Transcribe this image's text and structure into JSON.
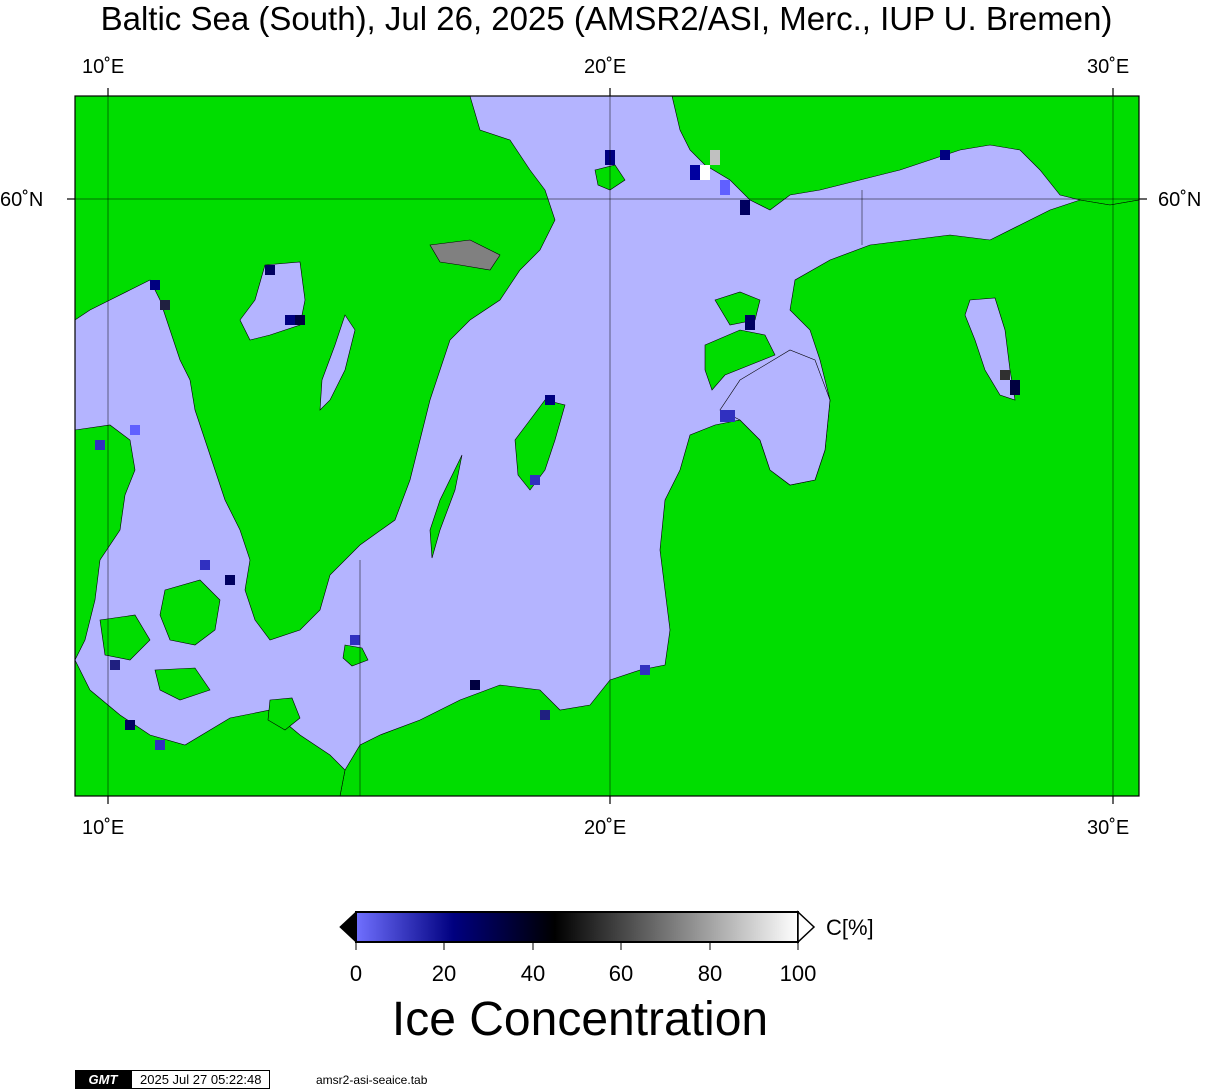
{
  "title": "Baltic Sea (South), Jul 26, 2025 (AMSR2/ASI, Merc., IUP U. Bremen)",
  "map": {
    "lon_labels_top": [
      "10˚E",
      "20˚E",
      "30˚E"
    ],
    "lon_labels_bottom": [
      "10˚E",
      "20˚E",
      "30˚E"
    ],
    "lat_label_left": "60˚N",
    "lat_label_right": "60˚N",
    "colors": {
      "land": "#00dd00",
      "open_water": "#b4b4ff",
      "lake_land": "#808080",
      "coastline": "#000000",
      "gridline": "#000000"
    }
  },
  "colorbar": {
    "unit_label": "C[%]",
    "ticks": [
      "0",
      "20",
      "40",
      "60",
      "80",
      "100"
    ],
    "title": "Ice Concentration",
    "colors": {
      "low": "#7070ff",
      "mid_low": "#000080",
      "mid": "#000000",
      "high": "#ffffff"
    }
  },
  "footer": {
    "logo": "GMT",
    "timestamp": "2025 Jul 27 05:22:48",
    "filename": "amsr2-asi-seaice.tab"
  }
}
